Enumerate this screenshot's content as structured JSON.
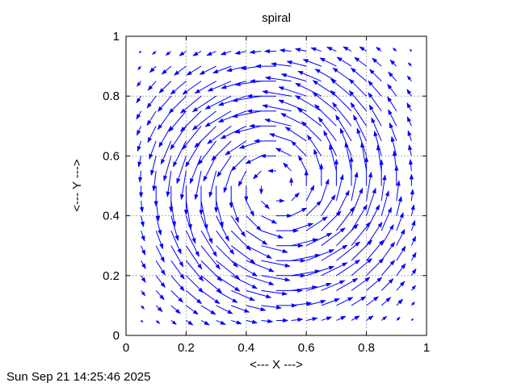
{
  "chart_data": {
    "type": "quiver",
    "title": "spiral",
    "xlabel": "<--- X --->",
    "ylabel": "<--- Y --->",
    "xlim": [
      0,
      1
    ],
    "ylim": [
      0,
      1
    ],
    "xticks": [
      "0",
      "0.2",
      "0.4",
      "0.6",
      "0.8",
      "1"
    ],
    "yticks": [
      "0",
      "0.2",
      "0.4",
      "0.6",
      "0.8",
      "1"
    ],
    "grid": true,
    "legend": "none",
    "arrow_color": "#0000ff",
    "field": {
      "x": [
        0.05,
        0.1,
        0.15,
        0.2,
        0.25,
        0.3,
        0.35,
        0.4,
        0.45,
        0.5,
        0.55,
        0.6,
        0.65,
        0.7,
        0.75,
        0.8,
        0.85,
        0.9,
        0.95
      ],
      "y": [
        0.05,
        0.1,
        0.15,
        0.2,
        0.25,
        0.3,
        0.35,
        0.4,
        0.45,
        0.5,
        0.55,
        0.6,
        0.65,
        0.7,
        0.75,
        0.8,
        0.85,
        0.9,
        0.95
      ],
      "u": "-sin(pi*x)*sin(pi*y)*(y-0.5)",
      "v": "sin(pi*x)*sin(pi*y)*(x-0.5)",
      "scale": 0.55
    }
  },
  "timestamp": "Sun Sep 21 14:25:46 2025"
}
